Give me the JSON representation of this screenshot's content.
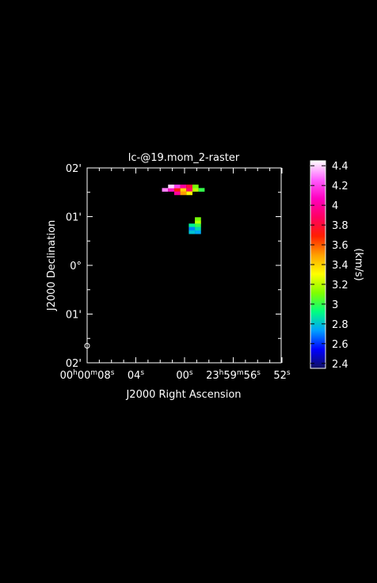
{
  "chart_data": {
    "type": "heatmap",
    "title": "lc-@19.mom_2-raster",
    "xlabel": "J2000 Right Ascension",
    "ylabel": "J2000 Declination",
    "x_ticks": [
      {
        "label": "00h00m08s",
        "parts": [
          "00",
          "h",
          "00",
          "m",
          "08",
          "s"
        ]
      },
      {
        "label": "04s",
        "parts": [
          "04",
          "s"
        ]
      },
      {
        "label": "00s",
        "parts": [
          "00",
          "s"
        ]
      },
      {
        "label": "23h59m56s",
        "parts": [
          "23",
          "h",
          "59",
          "m",
          "56",
          "s"
        ]
      },
      {
        "label": "52s",
        "parts": [
          "52",
          "s"
        ]
      }
    ],
    "y_ticks": [
      "02'",
      "01'",
      "0°",
      "01'",
      "02'"
    ],
    "colorbar": {
      "label": "(km/s)",
      "range": [
        2.35,
        4.45
      ],
      "ticks": [
        "4.4",
        "4.2",
        "4",
        "3.8",
        "3.6",
        "3.4",
        "3.2",
        "3",
        "2.8",
        "2.6",
        "2.4"
      ],
      "colormap": [
        "#101060",
        "#0000ff",
        "#00a0ff",
        "#00ff80",
        "#80ff00",
        "#ffff00",
        "#ffa000",
        "#ff2000",
        "#ff0060",
        "#ff00c0",
        "#ff60ff",
        "#ffffff"
      ]
    },
    "pixels": [
      {
        "ra_s": 1.6,
        "dec_arcmin": 1.55,
        "value": 4.3
      },
      {
        "ra_s": 1.1,
        "dec_arcmin": 1.55,
        "value": 4.1
      },
      {
        "ra_s": 0.6,
        "dec_arcmin": 1.55,
        "value": 3.7
      },
      {
        "ra_s": 0.1,
        "dec_arcmin": 1.55,
        "value": 3.4
      },
      {
        "ra_s": -0.4,
        "dec_arcmin": 1.55,
        "value": 3.9
      },
      {
        "ra_s": -0.9,
        "dec_arcmin": 1.55,
        "value": 3.2
      },
      {
        "ra_s": -1.4,
        "dec_arcmin": 1.55,
        "value": 3.0
      },
      {
        "ra_s": 1.1,
        "dec_arcmin": 1.62,
        "value": 4.4
      },
      {
        "ra_s": 0.6,
        "dec_arcmin": 1.62,
        "value": 4.2
      },
      {
        "ra_s": 0.1,
        "dec_arcmin": 1.62,
        "value": 4.0
      },
      {
        "ra_s": -0.4,
        "dec_arcmin": 1.62,
        "value": 3.8
      },
      {
        "ra_s": -0.9,
        "dec_arcmin": 1.62,
        "value": 3.1
      },
      {
        "ra_s": 0.6,
        "dec_arcmin": 1.48,
        "value": 4.0
      },
      {
        "ra_s": 0.1,
        "dec_arcmin": 1.48,
        "value": 3.5
      },
      {
        "ra_s": -0.4,
        "dec_arcmin": 1.48,
        "value": 3.3
      },
      {
        "ra_s": -1.1,
        "dec_arcmin": 0.95,
        "value": 3.1
      },
      {
        "ra_s": -1.1,
        "dec_arcmin": 0.88,
        "value": 3.2
      },
      {
        "ra_s": -0.6,
        "dec_arcmin": 0.82,
        "value": 2.9
      },
      {
        "ra_s": -1.1,
        "dec_arcmin": 0.82,
        "value": 3.0
      },
      {
        "ra_s": -0.6,
        "dec_arcmin": 0.75,
        "value": 2.7
      },
      {
        "ra_s": -1.1,
        "dec_arcmin": 0.75,
        "value": 2.85
      },
      {
        "ra_s": -0.6,
        "dec_arcmin": 0.68,
        "value": 2.8
      },
      {
        "ra_s": -1.1,
        "dec_arcmin": 0.68,
        "value": 2.75
      }
    ],
    "beam": {
      "ra_s": 8.0,
      "dec_arcmin": -1.65
    }
  }
}
